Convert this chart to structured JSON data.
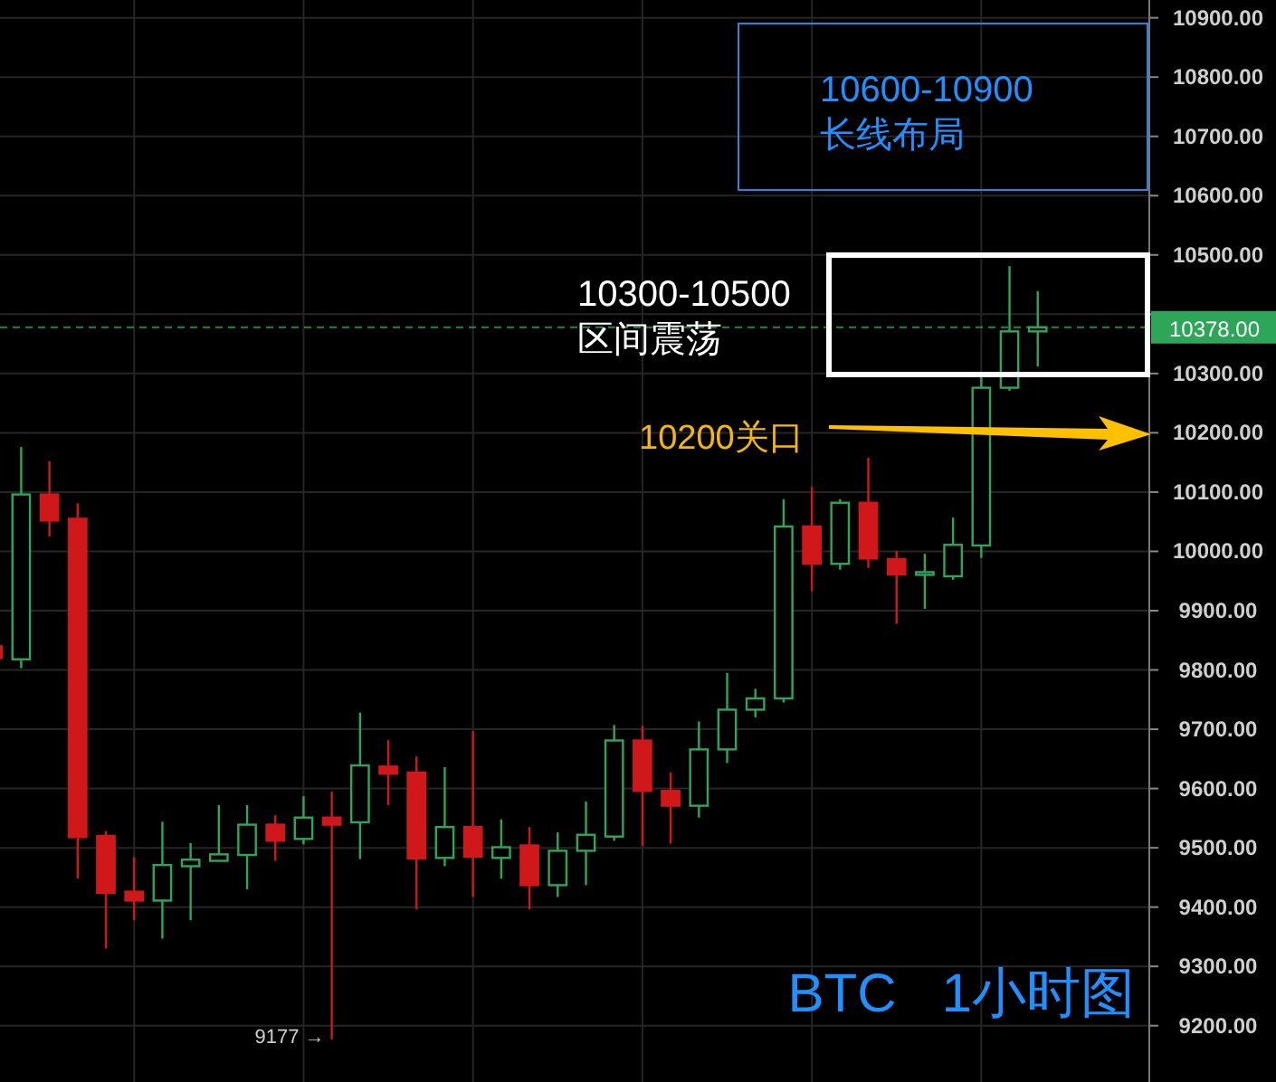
{
  "chart_data": {
    "type": "candlestick",
    "categories": [
      null,
      null,
      null,
      null,
      null,
      null,
      null,
      null,
      null,
      null,
      null,
      null,
      null,
      null,
      null,
      null,
      null,
      null,
      null,
      null,
      null,
      null,
      null,
      null,
      null,
      null,
      null,
      null,
      null,
      null,
      null,
      null,
      null,
      null,
      null,
      null,
      null,
      null
    ],
    "ohlc": [
      [
        9840,
        9840,
        9820,
        9820
      ],
      [
        9818,
        10176,
        9803,
        10096
      ],
      [
        10096,
        10152,
        10025,
        10052
      ],
      [
        10055,
        10081,
        9448,
        9518
      ],
      [
        9520,
        9528,
        9330,
        9424
      ],
      [
        9426,
        9484,
        9378,
        9411
      ],
      [
        9411,
        9544,
        9347,
        9471
      ],
      [
        9469,
        9508,
        9378,
        9480
      ],
      [
        9478,
        9572,
        9478,
        9489
      ],
      [
        9488,
        9572,
        9430,
        9539
      ],
      [
        9539,
        9555,
        9478,
        9512
      ],
      [
        9515,
        9587,
        9506,
        9551
      ],
      [
        9551,
        9595,
        9177,
        9539
      ],
      [
        9543,
        9728,
        9481,
        9639
      ],
      [
        9637,
        9682,
        9572,
        9625
      ],
      [
        9627,
        9654,
        9396,
        9482
      ],
      [
        9483,
        9636,
        9469,
        9535
      ],
      [
        9535,
        9697,
        9417,
        9485
      ],
      [
        9483,
        9548,
        9448,
        9501
      ],
      [
        9504,
        9535,
        9396,
        9437
      ],
      [
        9437,
        9526,
        9417,
        9495
      ],
      [
        9495,
        9578,
        9437,
        9522
      ],
      [
        9519,
        9707,
        9512,
        9681
      ],
      [
        9681,
        9706,
        9503,
        9596
      ],
      [
        9596,
        9627,
        9507,
        9571
      ],
      [
        9571,
        9713,
        9551,
        9666
      ],
      [
        9666,
        9795,
        9643,
        9733
      ],
      [
        9733,
        9768,
        9720,
        9752
      ],
      [
        9752,
        10088,
        9745,
        10042
      ],
      [
        10042,
        10109,
        9933,
        9979
      ],
      [
        9979,
        10088,
        9969,
        10082
      ],
      [
        10082,
        10158,
        9972,
        9988
      ],
      [
        9987,
        10001,
        9878,
        9961
      ],
      [
        9962,
        9996,
        9903,
        9965
      ],
      [
        9958,
        10057,
        9952,
        10011
      ],
      [
        10010,
        10295,
        9989,
        10276
      ],
      [
        10276,
        10481,
        10271,
        10371
      ],
      [
        10371,
        10439,
        10312,
        10378
      ]
    ],
    "colors": [
      "#d0171a",
      "#2ea65a",
      "#d0171a",
      "#d0171a",
      "#d0171a",
      "#d0171a",
      "#2ea65a",
      "#2ea65a",
      "#2ea65a",
      "#2ea65a",
      "#d0171a",
      "#2ea65a",
      "#d0171a",
      "#2ea65a",
      "#d0171a",
      "#d0171a",
      "#2ea65a",
      "#d0171a",
      "#2ea65a",
      "#d0171a",
      "#2ea65a",
      "#2ea65a",
      "#2ea65a",
      "#d0171a",
      "#d0171a",
      "#2ea65a",
      "#2ea65a",
      "#2ea65a",
      "#2ea65a",
      "#d0171a",
      "#2ea65a",
      "#d0171a",
      "#d0171a",
      "#2ea65a",
      "#2ea65a",
      "#2ea65a",
      "#2ea65a",
      "#2ea65a"
    ],
    "ylim": [
      9105,
      10930
    ],
    "yticks": [
      {
        "value": 9200,
        "label": "9200.00"
      },
      {
        "value": 9300,
        "label": "9300.00"
      },
      {
        "value": 9400,
        "label": "9400.00"
      },
      {
        "value": 9500,
        "label": "9500.00"
      },
      {
        "value": 9600,
        "label": "9600.00"
      },
      {
        "value": 9700,
        "label": "9700.00"
      },
      {
        "value": 9800,
        "label": "9800.00"
      },
      {
        "value": 9900,
        "label": "9900.00"
      },
      {
        "value": 10000,
        "label": "10000.00"
      },
      {
        "value": 10100,
        "label": "10100.00"
      },
      {
        "value": 10200,
        "label": "10200.00"
      },
      {
        "value": 10300,
        "label": "10300.00"
      },
      {
        "value": 10400,
        "label": null
      },
      {
        "value": 10500,
        "label": "10500.00"
      },
      {
        "value": 10600,
        "label": "10600.00"
      },
      {
        "value": 10700,
        "label": "10700.00"
      },
      {
        "value": 10800,
        "label": "10800.00"
      },
      {
        "value": 10900,
        "label": "10900.00"
      }
    ],
    "grid": true,
    "tick_labels": "y",
    "ref_lines": [
      {
        "axis": "y",
        "value": 10378,
        "label": "10378.00",
        "color": "#2ea65a",
        "line_style": "dashed"
      }
    ],
    "annotations": [
      "10600-10900\n长线布局",
      "10300-10500\n区间震荡",
      "10200关口",
      "9177 →",
      "BTC   1小时图"
    ]
  }
}
